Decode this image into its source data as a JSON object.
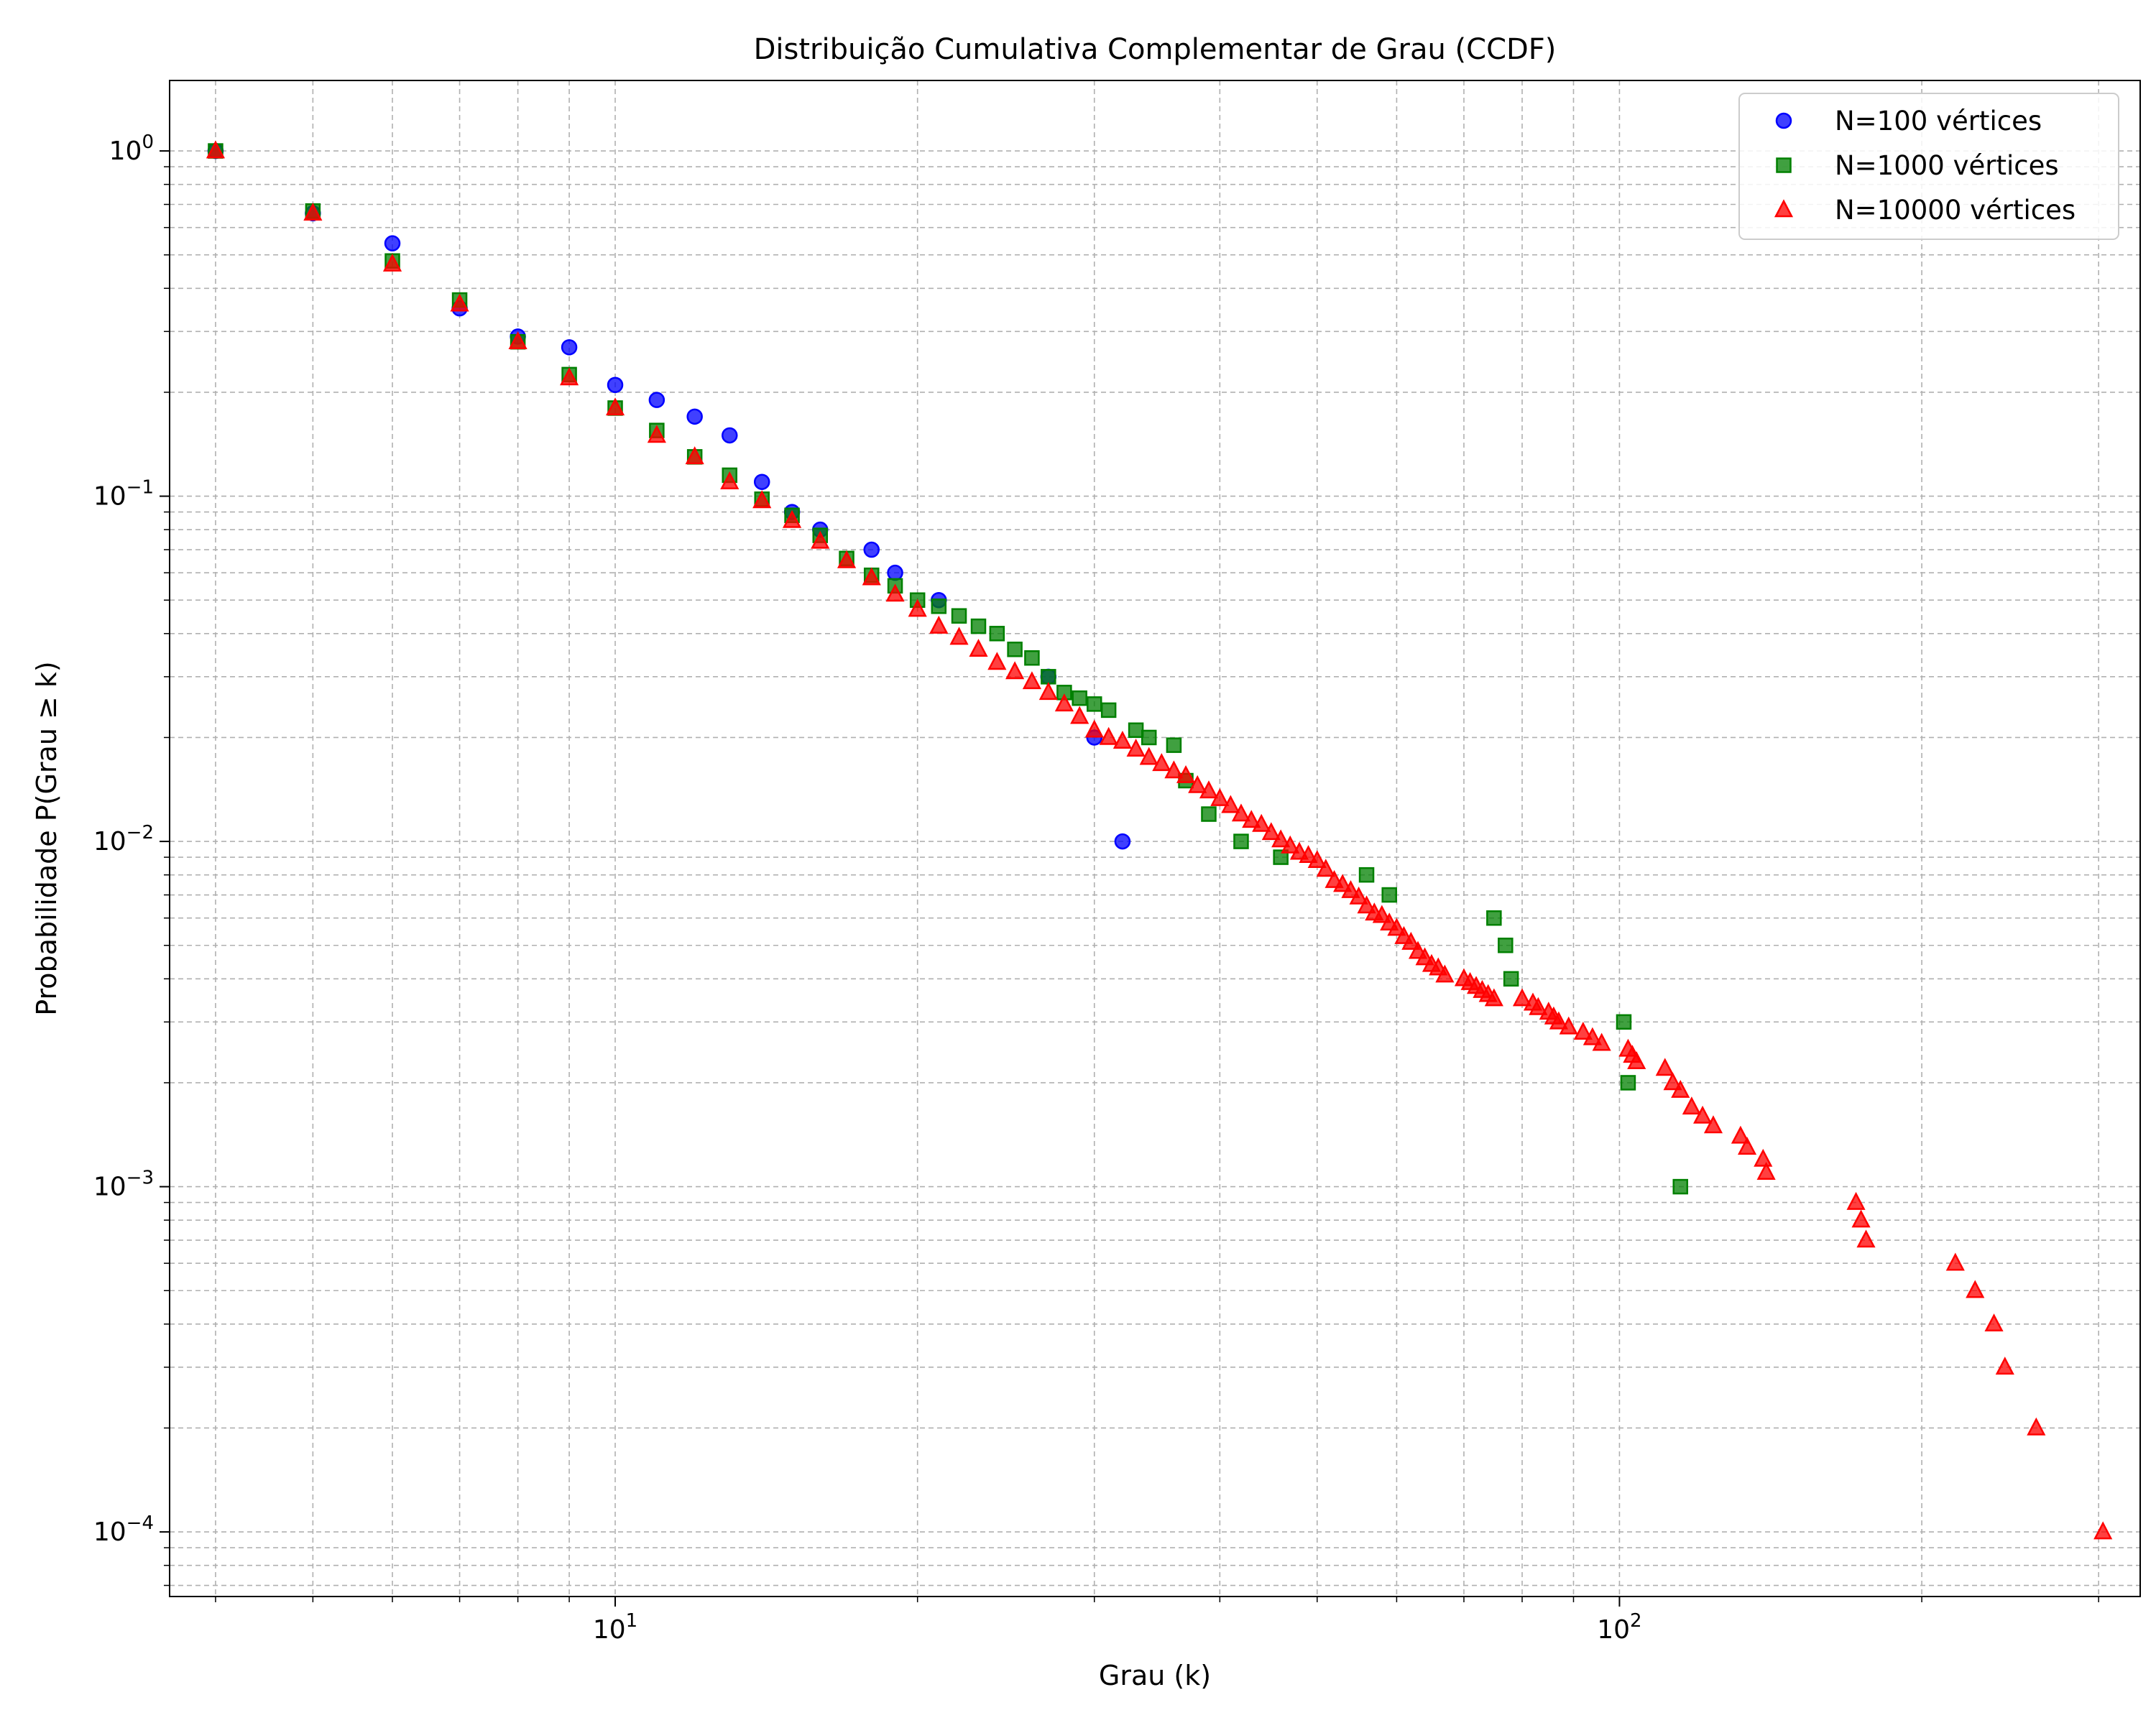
{
  "chart_data": {
    "type": "scatter",
    "title": "Distribuição Cumulativa Complementar de Grau (CCDF)",
    "xlabel": "Grau (k)",
    "ylabel": "Probabilidade P(Grau ≥ k)",
    "xscale": "log",
    "yscale": "log",
    "xlim": [
      3.6,
      330
    ],
    "ylim": [
      6.5e-05,
      1.6
    ],
    "grid": true,
    "legend_position": "top-right",
    "x_ticks": [
      {
        "value": 10,
        "label": "10^1"
      },
      {
        "value": 100,
        "label": "10^2"
      }
    ],
    "y_ticks": [
      {
        "value": 1,
        "label": "10^0"
      },
      {
        "value": 0.1,
        "label": "10^-1"
      },
      {
        "value": 0.01,
        "label": "10^-2"
      },
      {
        "value": 0.001,
        "label": "10^-3"
      },
      {
        "value": 0.0001,
        "label": "10^-4"
      }
    ],
    "series": [
      {
        "name": "N=100 vértices",
        "color": "#0000ff",
        "marker": "circle",
        "points": [
          [
            4,
            1.0
          ],
          [
            5,
            0.66
          ],
          [
            6,
            0.54
          ],
          [
            7,
            0.35
          ],
          [
            8,
            0.29
          ],
          [
            9,
            0.27
          ],
          [
            10,
            0.21
          ],
          [
            11,
            0.19
          ],
          [
            12,
            0.17
          ],
          [
            13,
            0.15
          ],
          [
            14,
            0.11
          ],
          [
            15,
            0.09
          ],
          [
            16,
            0.08
          ],
          [
            18,
            0.07
          ],
          [
            19,
            0.06
          ],
          [
            21,
            0.05
          ],
          [
            27,
            0.03
          ],
          [
            30,
            0.02
          ],
          [
            32,
            0.01
          ]
        ]
      },
      {
        "name": "N=1000 vértices",
        "color": "#008000",
        "marker": "square",
        "points": [
          [
            4,
            1.0
          ],
          [
            5,
            0.67
          ],
          [
            6,
            0.48
          ],
          [
            7,
            0.37
          ],
          [
            8,
            0.28
          ],
          [
            9,
            0.225
          ],
          [
            10,
            0.18
          ],
          [
            11,
            0.155
          ],
          [
            12,
            0.13
          ],
          [
            13,
            0.115
          ],
          [
            14,
            0.098
          ],
          [
            15,
            0.088
          ],
          [
            16,
            0.077
          ],
          [
            17,
            0.066
          ],
          [
            18,
            0.059
          ],
          [
            19,
            0.055
          ],
          [
            20,
            0.05
          ],
          [
            21,
            0.048
          ],
          [
            22,
            0.045
          ],
          [
            23,
            0.042
          ],
          [
            24,
            0.04
          ],
          [
            25,
            0.036
          ],
          [
            26,
            0.034
          ],
          [
            27,
            0.03
          ],
          [
            28,
            0.027
          ],
          [
            29,
            0.026
          ],
          [
            30,
            0.025
          ],
          [
            31,
            0.024
          ],
          [
            33,
            0.021
          ],
          [
            34,
            0.02
          ],
          [
            36,
            0.019
          ],
          [
            37,
            0.015
          ],
          [
            39,
            0.012
          ],
          [
            42,
            0.01
          ],
          [
            46,
            0.009
          ],
          [
            56,
            0.008
          ],
          [
            59,
            0.007
          ],
          [
            75,
            0.006
          ],
          [
            77,
            0.005
          ],
          [
            78,
            0.004
          ],
          [
            101,
            0.003
          ],
          [
            102,
            0.002
          ],
          [
            115,
            0.001
          ]
        ]
      },
      {
        "name": "N=10000 vértices",
        "color": "#ff0000",
        "marker": "triangle",
        "points": [
          [
            4,
            1.0
          ],
          [
            5,
            0.66
          ],
          [
            6,
            0.47
          ],
          [
            7,
            0.36
          ],
          [
            8,
            0.28
          ],
          [
            9,
            0.22
          ],
          [
            10,
            0.18
          ],
          [
            11,
            0.15
          ],
          [
            12,
            0.13
          ],
          [
            13,
            0.11
          ],
          [
            14,
            0.097
          ],
          [
            15,
            0.085
          ],
          [
            16,
            0.074
          ],
          [
            17,
            0.065
          ],
          [
            18,
            0.058
          ],
          [
            19,
            0.052
          ],
          [
            20,
            0.047
          ],
          [
            21,
            0.042
          ],
          [
            22,
            0.039
          ],
          [
            23,
            0.036
          ],
          [
            24,
            0.033
          ],
          [
            25,
            0.031
          ],
          [
            26,
            0.029
          ],
          [
            27,
            0.027
          ],
          [
            28,
            0.025
          ],
          [
            29,
            0.023
          ],
          [
            30,
            0.021
          ],
          [
            31,
            0.02
          ],
          [
            32,
            0.0195
          ],
          [
            33,
            0.0185
          ],
          [
            34,
            0.0175
          ],
          [
            35,
            0.0168
          ],
          [
            36,
            0.016
          ],
          [
            37,
            0.0155
          ],
          [
            38,
            0.0145
          ],
          [
            39,
            0.014
          ],
          [
            40,
            0.0133
          ],
          [
            41,
            0.0127
          ],
          [
            42,
            0.012
          ],
          [
            43,
            0.0115
          ],
          [
            44,
            0.0112
          ],
          [
            45,
            0.0106
          ],
          [
            46,
            0.0101
          ],
          [
            47,
            0.0097
          ],
          [
            48,
            0.0093
          ],
          [
            49,
            0.0091
          ],
          [
            50,
            0.0088
          ],
          [
            51,
            0.0083
          ],
          [
            52,
            0.0077
          ],
          [
            53,
            0.0075
          ],
          [
            54,
            0.0072
          ],
          [
            55,
            0.0069
          ],
          [
            56,
            0.0065
          ],
          [
            57,
            0.0062
          ],
          [
            58,
            0.0061
          ],
          [
            59,
            0.0058
          ],
          [
            60,
            0.0056
          ],
          [
            61,
            0.0053
          ],
          [
            62,
            0.0051
          ],
          [
            63,
            0.0048
          ],
          [
            64,
            0.0046
          ],
          [
            65,
            0.0044
          ],
          [
            66,
            0.0043
          ],
          [
            67,
            0.0041
          ],
          [
            70,
            0.004
          ],
          [
            71,
            0.0039
          ],
          [
            72,
            0.0038
          ],
          [
            73,
            0.0037
          ],
          [
            74,
            0.0036
          ],
          [
            75,
            0.0035
          ],
          [
            80,
            0.0035
          ],
          [
            82,
            0.0034
          ],
          [
            83,
            0.0033
          ],
          [
            85,
            0.0032
          ],
          [
            86,
            0.0031
          ],
          [
            87,
            0.003
          ],
          [
            89,
            0.0029
          ],
          [
            92,
            0.0028
          ],
          [
            94,
            0.0027
          ],
          [
            96,
            0.0026
          ],
          [
            102,
            0.0025
          ],
          [
            103,
            0.0024
          ],
          [
            104,
            0.0023
          ],
          [
            111,
            0.0022
          ],
          [
            113,
            0.002
          ],
          [
            115,
            0.0019
          ],
          [
            118,
            0.0017
          ],
          [
            121,
            0.0016
          ],
          [
            124,
            0.0015
          ],
          [
            132,
            0.0014
          ],
          [
            134,
            0.0013
          ],
          [
            139,
            0.0012
          ],
          [
            140,
            0.0011
          ],
          [
            172,
            0.0009
          ],
          [
            174,
            0.0008
          ],
          [
            176,
            0.0007
          ],
          [
            216,
            0.0006
          ],
          [
            226,
            0.0005
          ],
          [
            236,
            0.0004
          ],
          [
            242,
            0.0003
          ],
          [
            260,
            0.0002
          ],
          [
            303,
            0.0001
          ]
        ]
      }
    ]
  }
}
